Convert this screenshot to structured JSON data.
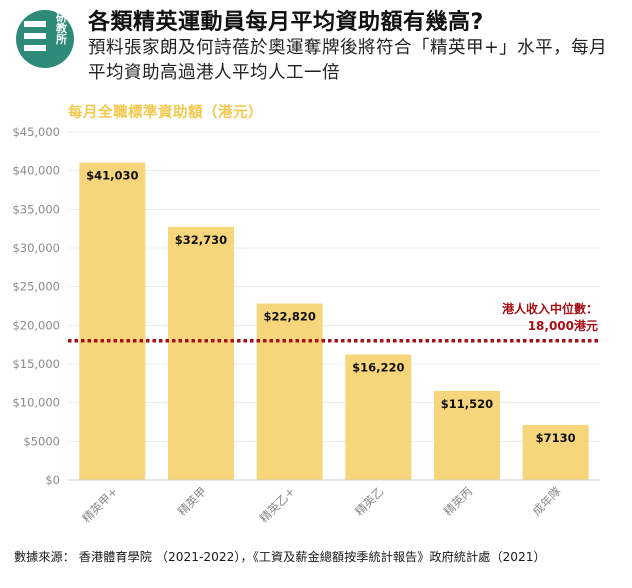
{
  "logo": {
    "text": "研教所",
    "name": "research-institute-logo"
  },
  "header": {
    "title": "各類精英運動員每月平均資助額有幾高?",
    "subtitle": "預料張家朗及何詩蓓於奧運奪牌後將符合「精英甲+」水平，每月平均資助高過港人平均人工一倍"
  },
  "chart_caption": "每月全職標準資助額（港元）",
  "chart_data": {
    "type": "bar",
    "title": "每月全職標準資助額（港元）",
    "categories": [
      "精英甲+",
      "精英甲",
      "精英乙+",
      "精英乙",
      "精英丙",
      "成年隊"
    ],
    "values": [
      41030,
      32730,
      22820,
      16220,
      11520,
      7130
    ],
    "value_labels": [
      "$41,030",
      "$32,730",
      "$22,820",
      "$16,220",
      "$11,520",
      "$7130"
    ],
    "ylim": [
      0,
      45000
    ],
    "yticks": [
      0,
      5000,
      10000,
      15000,
      20000,
      25000,
      30000,
      35000,
      40000,
      45000
    ],
    "ytick_labels": [
      "$0",
      "$5000",
      "$10,000",
      "$15,000",
      "$20,000",
      "$25,000",
      "$30,000",
      "$35,000",
      "$40,000",
      "$45,000"
    ],
    "xlabel": "",
    "ylabel": "",
    "grid": true,
    "bar_color": "#f7d57a",
    "reference_line": {
      "value": 18000,
      "label_lines": [
        "港人收入中位數：",
        "18,000港元"
      ],
      "color": "#a50f15",
      "style": "dotted"
    }
  },
  "source": "數據來源： 香港體育學院 （2021-2022），《工資及薪金總額按季統計報告》政府統計處（2021）",
  "colors": {
    "accent": "#f2c94c",
    "bar": "#f7d57a",
    "median": "#a50f15",
    "logo": "#2e8b7a"
  }
}
